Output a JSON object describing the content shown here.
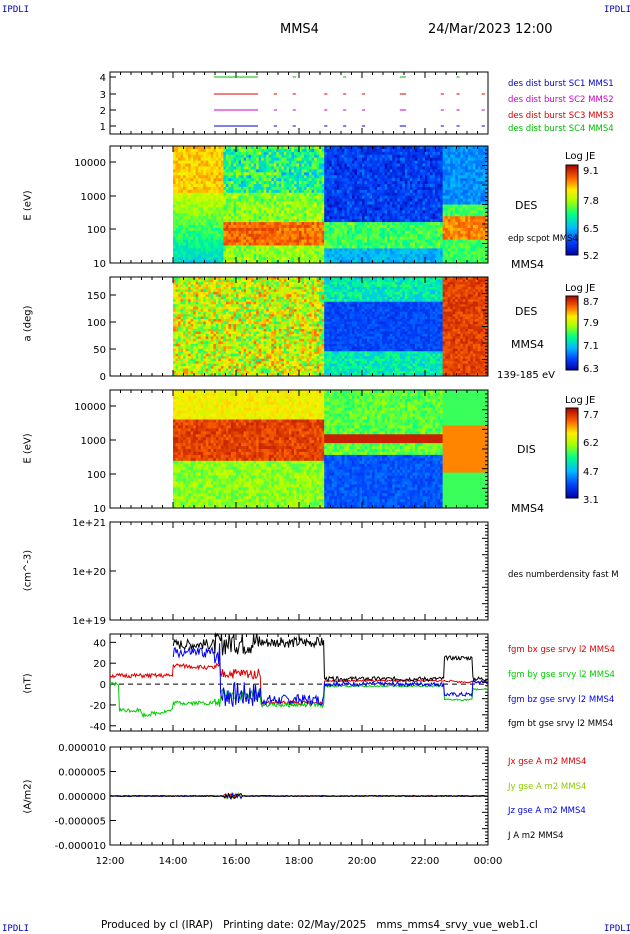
{
  "header": {
    "corner_label": "IPDLI",
    "spacecraft": "MMS4",
    "datetime": "24/Mar/2023 12:00"
  },
  "footer": {
    "text": "Produced by cl (IRAP)   Printing date: 02/May/2025   mms_mms4_srvy_vue_web1.cl"
  },
  "colors": {
    "mms1": "#0000cc",
    "mms2": "#cc00cc",
    "mms3": "#dd0000",
    "mms4": "#00bb00",
    "bx": "#dd0000",
    "by": "#00cc00",
    "bz": "#0000ee",
    "bt": "#000000"
  },
  "chart_data": [
    {
      "type": "scatter",
      "panel": "burst",
      "yticks": [
        "1",
        "2",
        "3",
        "4"
      ],
      "legend": [
        {
          "name": "des dist burst SC1 MMS1",
          "color": "#0000cc"
        },
        {
          "name": "des dist burst SC2 MMS2",
          "color": "#cc00cc"
        },
        {
          "name": "des dist burst SC3 MMS3",
          "color": "#dd0000"
        },
        {
          "name": "des dist burst SC4 MMS4",
          "color": "#00bb00"
        }
      ]
    },
    {
      "type": "heatmap",
      "panel": "des_energy",
      "ylabel": "E (eV)",
      "yscale": "log",
      "yticks": [
        "10",
        "100",
        "1000",
        "10000"
      ],
      "right_label": "DES",
      "right_sub": "edp scpot MMS4",
      "right_bottom": "MMS4",
      "colorbar": {
        "title": "Log JE",
        "ticks": [
          "9.1",
          "7.8",
          "6.5",
          "5.2"
        ]
      }
    },
    {
      "type": "heatmap",
      "panel": "des_pitch",
      "ylabel": "a (deg)",
      "yticks": [
        "0",
        "50",
        "100",
        "150"
      ],
      "right_label": "DES",
      "right_sub": "MMS4",
      "right_bottom": "139-185 eV",
      "colorbar": {
        "title": "Log JE",
        "ticks": [
          "8.7",
          "7.9",
          "7.1",
          "6.3"
        ]
      }
    },
    {
      "type": "heatmap",
      "panel": "dis_energy",
      "ylabel": "E (eV)",
      "yscale": "log",
      "yticks": [
        "10",
        "100",
        "1000",
        "10000"
      ],
      "right_label": "DIS",
      "right_bottom": "MMS4",
      "colorbar": {
        "title": "Log JE",
        "ticks": [
          "7.7",
          "6.2",
          "4.7",
          "3.1"
        ]
      }
    },
    {
      "type": "line",
      "panel": "density",
      "ylabel": "(cm^-3)",
      "yscale": "log",
      "yticks": [
        "1e+19",
        "1e+20",
        "1e+21"
      ],
      "legend": [
        {
          "name": "des numberdensity fast M",
          "color": "#000000"
        }
      ]
    },
    {
      "type": "line",
      "panel": "bfield",
      "ylabel": "(nT)",
      "ylim": [
        -45,
        48
      ],
      "yticks": [
        "-40",
        "-20",
        "0",
        "20",
        "40"
      ],
      "legend": [
        {
          "name": "fgm bx gse srvy l2 MMS4",
          "color": "#dd0000"
        },
        {
          "name": "fgm by gse srvy l2 MMS4",
          "color": "#00cc00"
        },
        {
          "name": "fgm bz gse srvy l2 MMS4",
          "color": "#0000ee"
        },
        {
          "name": "fgm bt gse srvy l2 MMS4",
          "color": "#000000"
        }
      ]
    },
    {
      "type": "line",
      "panel": "current",
      "ylabel": "(A/m2)",
      "ylim": [
        -1e-05,
        1e-05
      ],
      "yticks": [
        "-0.000010",
        "-0.000005",
        "0.000000",
        "0.000005",
        "0.000010"
      ],
      "legend": [
        {
          "name": "Jx gse A m2 MMS4",
          "color": "#dd0000"
        },
        {
          "name": "Jy gse A m2 MMS4",
          "color": "#88cc00"
        },
        {
          "name": "Jz gse A m2 MMS4",
          "color": "#0000ee"
        },
        {
          "name": "J A m2 MMS4",
          "color": "#000000"
        }
      ]
    }
  ],
  "time_axis": {
    "labels": [
      "12:00",
      "14:00",
      "16:00",
      "18:00",
      "20:00",
      "22:00",
      "00:00"
    ]
  }
}
